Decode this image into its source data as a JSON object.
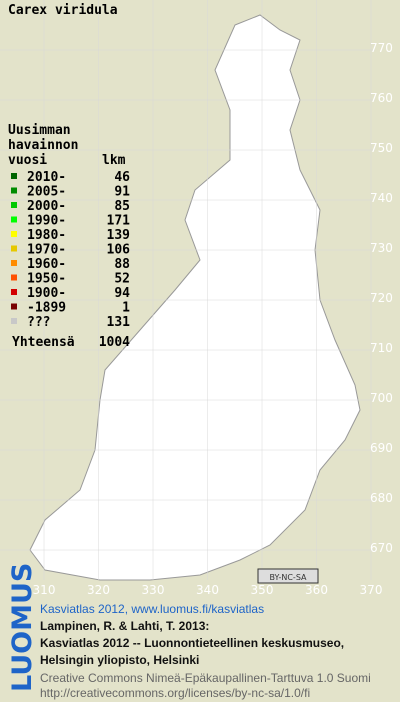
{
  "title": "Carex viridula",
  "legend": {
    "heading": [
      "Uusimman",
      "havainnon",
      "vuosi"
    ],
    "count_heading": "lkm",
    "rows": [
      {
        "label": "2010-",
        "count": 46,
        "color": "#006400"
      },
      {
        "label": "2005-",
        "count": 91,
        "color": "#008c00"
      },
      {
        "label": "2000-",
        "count": 85,
        "color": "#00c800"
      },
      {
        "label": "1990-",
        "count": 171,
        "color": "#00ff00"
      },
      {
        "label": "1980-",
        "count": 139,
        "color": "#ffff00"
      },
      {
        "label": "1970-",
        "count": 106,
        "color": "#e6c800"
      },
      {
        "label": "1960-",
        "count": 88,
        "color": "#ff8c00"
      },
      {
        "label": "1950-",
        "count": 52,
        "color": "#ff5000"
      },
      {
        "label": "1900-",
        "count": 94,
        "color": "#d20000"
      },
      {
        "label": "-1899",
        "count": 1,
        "color": "#780000"
      },
      {
        "label": "???",
        "count": 131,
        "color": "#c8c8c8"
      }
    ],
    "total_label": "Yhteensä",
    "total": 1004
  },
  "axes": {
    "y_labels": [
      770,
      760,
      750,
      740,
      730,
      720,
      710,
      700,
      690,
      680,
      670
    ],
    "x_labels": [
      310,
      320,
      330,
      340,
      350,
      360,
      370
    ]
  },
  "badge": "BY-NC-SA",
  "logo": "LUOMUS",
  "credits": {
    "link": "Kasviatlas 2012, www.luomus.fi/kasviatlas",
    "citation": [
      "Lampinen, R. & Lahti, T. 2013:",
      "Kasviatlas 2012 -- Luonnontieteellinen keskusmuseo,",
      "Helsingin yliopisto, Helsinki"
    ],
    "license": [
      "Creative Commons Nimeä-Epäkaupallinen-Tarttuva 1.0 Suomi",
      "http://creativecommons.org/licenses/by-nc-sa/1.0/fi"
    ]
  }
}
